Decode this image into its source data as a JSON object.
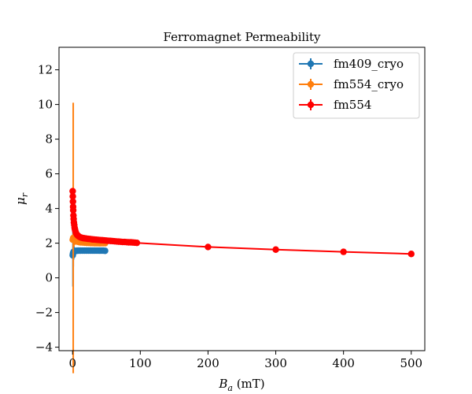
{
  "chart_data": {
    "type": "line",
    "title": "Ferromagnet Permeability",
    "xlabel": "B",
    "xlabel_sub": "a",
    "xlabel_unit": " (mT)",
    "ylabel": "μ",
    "ylabel_sub": "r",
    "xlim": [
      -20,
      520
    ],
    "ylim": [
      -4.2,
      13.3
    ],
    "xticks": [
      0,
      100,
      200,
      300,
      400,
      500
    ],
    "yticks": [
      -4,
      -2,
      0,
      2,
      4,
      6,
      8,
      10,
      12
    ],
    "ytick_labels": [
      "−4",
      "−2",
      "0",
      "2",
      "4",
      "6",
      "8",
      "10",
      "12"
    ],
    "grid": false,
    "legend_position": "top-right",
    "series": [
      {
        "name": "fm409_cryo",
        "color": "#1f77b4",
        "x": [
          0.3,
          0.6,
          1,
          1.5,
          2,
          3,
          4,
          5,
          6,
          8,
          10,
          12,
          15,
          18,
          21,
          24,
          27,
          30,
          33,
          36,
          39,
          42,
          45,
          48
        ],
        "y": [
          1.3,
          1.4,
          1.45,
          1.5,
          1.52,
          1.54,
          1.55,
          1.56,
          1.56,
          1.57,
          1.57,
          1.57,
          1.57,
          1.57,
          1.57,
          1.57,
          1.57,
          1.57,
          1.57,
          1.57,
          1.57,
          1.57,
          1.57,
          1.56
        ],
        "err": [
          0,
          1.9,
          0.8,
          0.45,
          0.3,
          0.15,
          0.1,
          0.06,
          0.05,
          0.04,
          0.03,
          0.03,
          0.02,
          0.02,
          0.02,
          0.02,
          0.02,
          0.02,
          0.02,
          0.02,
          0.02,
          0.02,
          0.02,
          0.02
        ]
      },
      {
        "name": "fm554_cryo",
        "color": "#ff7f0e",
        "x": [
          0.3,
          1,
          2,
          3,
          4,
          5,
          6,
          8,
          10,
          12,
          15,
          18,
          21,
          24,
          27,
          30,
          33,
          36,
          39,
          42,
          45,
          48
        ],
        "y": [
          2.2,
          2.3,
          2.25,
          2.2,
          2.15,
          2.12,
          2.1,
          2.08,
          2.06,
          2.05,
          2.04,
          2.03,
          2.02,
          2.02,
          2.01,
          2.01,
          2.0,
          2.0,
          2.0,
          2.0,
          2.0,
          2.0
        ],
        "err": [
          0,
          7.8,
          0.45,
          0.3,
          0.2,
          0.15,
          0.12,
          0.1,
          0.08,
          0.07,
          0.06,
          0.05,
          0.05,
          0.05,
          0.04,
          0.04,
          0.04,
          0.04,
          0.04,
          0.04,
          0.04,
          0.04
        ]
      },
      {
        "name": "fm554",
        "color": "#ff0000",
        "x": [
          0.2,
          0.4,
          0.6,
          0.8,
          1,
          1.3,
          1.6,
          2,
          2.5,
          3,
          3.5,
          4,
          5,
          6,
          7,
          8,
          10,
          12,
          14,
          16,
          18,
          20,
          23,
          26,
          29,
          32,
          35,
          38,
          41,
          44,
          47,
          50,
          53,
          56,
          59,
          62,
          65,
          68,
          71,
          74,
          77,
          80,
          83,
          86,
          89,
          92,
          95,
          200,
          300,
          400,
          500
        ],
        "y": [
          5.0,
          4.7,
          4.4,
          4.1,
          3.9,
          3.6,
          3.4,
          3.2,
          3.05,
          2.9,
          2.8,
          2.72,
          2.6,
          2.52,
          2.47,
          2.43,
          2.37,
          2.33,
          2.31,
          2.29,
          2.28,
          2.27,
          2.25,
          2.24,
          2.22,
          2.21,
          2.2,
          2.19,
          2.18,
          2.17,
          2.16,
          2.15,
          2.14,
          2.13,
          2.12,
          2.11,
          2.1,
          2.09,
          2.08,
          2.07,
          2.07,
          2.06,
          2.05,
          2.05,
          2.04,
          2.03,
          2.02,
          1.78,
          1.63,
          1.5,
          1.38
        ],
        "err": []
      }
    ]
  }
}
